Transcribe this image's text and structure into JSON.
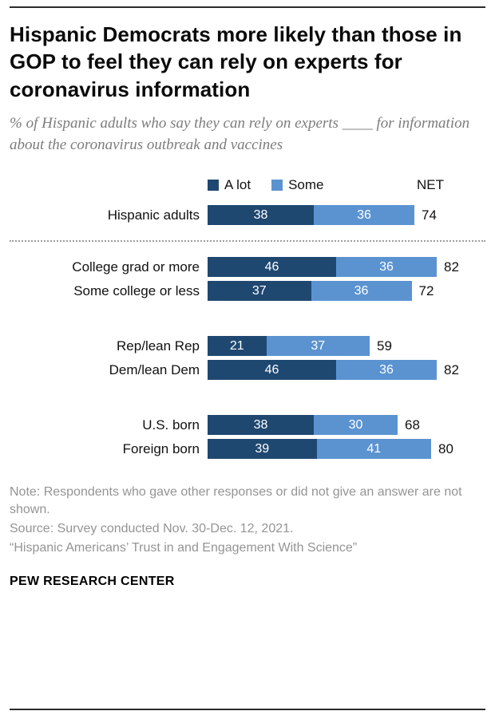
{
  "header": {
    "title": "Hispanic Democrats more likely than those in GOP to feel they can rely on experts for coronavirus information",
    "subtitle": "% of Hispanic adults who say they can rely on experts ____ for information about the coronavirus outbreak and vaccines"
  },
  "chart_data": {
    "type": "bar",
    "orientation": "horizontal",
    "stacked": true,
    "legend": [
      "A lot",
      "Some"
    ],
    "net_label": "NET",
    "series_colors": [
      "#1f4871",
      "#5b93d1"
    ],
    "xmax": 100,
    "sections": [
      {
        "divider_after": true,
        "rows": [
          {
            "label": "Hispanic adults",
            "values": [
              38,
              36
            ],
            "net": 74
          }
        ]
      },
      {
        "rows": [
          {
            "label": "College grad or more",
            "values": [
              46,
              36
            ],
            "net": 82
          },
          {
            "label": "Some college or less",
            "values": [
              37,
              36
            ],
            "net": 72
          }
        ]
      },
      {
        "rows": [
          {
            "label": "Rep/lean Rep",
            "values": [
              21,
              37
            ],
            "net": 59
          },
          {
            "label": "Dem/lean Dem",
            "values": [
              46,
              36
            ],
            "net": 82
          }
        ]
      },
      {
        "rows": [
          {
            "label": "U.S. born",
            "values": [
              38,
              30
            ],
            "net": 68
          },
          {
            "label": "Foreign born",
            "values": [
              39,
              41
            ],
            "net": 80
          }
        ]
      }
    ]
  },
  "footer": {
    "note": "Note: Respondents who gave other responses or did not give an answer are not shown.",
    "source": "Source: Survey conducted Nov. 30-Dec. 12, 2021.",
    "report": "“Hispanic Americans’ Trust in and Engagement With Science”",
    "brand": "PEW RESEARCH CENTER"
  }
}
